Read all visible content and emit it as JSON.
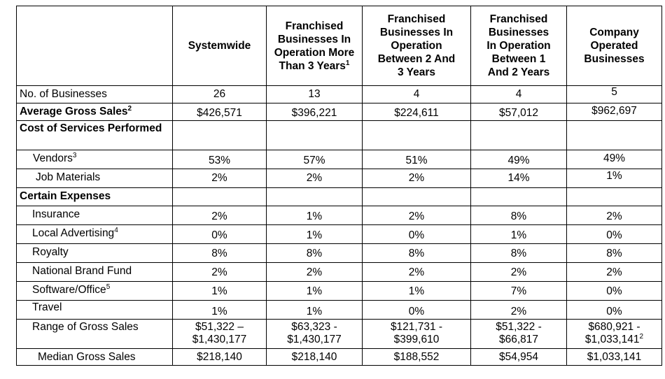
{
  "headers": [
    {
      "lines": [
        ""
      ],
      "sup": ""
    },
    {
      "lines": [
        "Systemwide"
      ],
      "sup": ""
    },
    {
      "lines": [
        "Franchised",
        "Businesses In",
        "Operation More",
        "Than 3 Years"
      ],
      "sup": "1"
    },
    {
      "lines": [
        "Franchised",
        "Businesses In",
        "Operation",
        "Between 2 And",
        "3 Years"
      ],
      "sup": ""
    },
    {
      "lines": [
        "Franchised",
        "Businesses",
        "In Operation",
        "Between 1",
        "And 2 Years"
      ],
      "sup": ""
    },
    {
      "lines": [
        "Company",
        "Operated",
        "Businesses"
      ],
      "sup": ""
    }
  ],
  "rows": [
    {
      "label": "No. of Businesses",
      "sup": "",
      "values": [
        "26",
        "13",
        "4",
        "4",
        "5"
      ]
    },
    {
      "label": "Average Gross Sales",
      "sup": "2",
      "values": [
        "$426,571",
        "$396,221",
        "$224,611",
        "$57,012",
        "$962,697"
      ]
    },
    {
      "label": "Cost of Services Performed",
      "sup": "",
      "values": [
        "",
        "",
        "",
        "",
        ""
      ]
    },
    {
      "label": "Vendors",
      "sup": "3",
      "values": [
        "53%",
        "57%",
        "51%",
        "49%",
        "49%"
      ]
    },
    {
      "label": "Job Materials",
      "sup": "",
      "values": [
        "2%",
        "2%",
        "2%",
        "14%",
        "1%"
      ]
    },
    {
      "label": "Certain Expenses",
      "sup": "",
      "values": [
        "",
        "",
        "",
        "",
        ""
      ]
    },
    {
      "label": "Insurance",
      "sup": "",
      "values": [
        "2%",
        "1%",
        "2%",
        "8%",
        "2%"
      ]
    },
    {
      "label": "Local Advertising",
      "sup": "4",
      "values": [
        "0%",
        "1%",
        "0%",
        "1%",
        "0%"
      ]
    },
    {
      "label": "Royalty",
      "sup": "",
      "values": [
        "8%",
        "8%",
        "8%",
        "8%",
        "8%"
      ]
    },
    {
      "label": "National Brand Fund",
      "sup": "",
      "values": [
        "2%",
        "2%",
        "2%",
        "2%",
        "2%"
      ]
    },
    {
      "label": "Software/Office",
      "sup": "5",
      "values": [
        "1%",
        "1%",
        "1%",
        "7%",
        "0%"
      ]
    },
    {
      "label": "Travel",
      "sup": "",
      "values": [
        "1%",
        "1%",
        "0%",
        "2%",
        "0%"
      ]
    },
    {
      "label": "Range of Gross Sales",
      "sup": "",
      "values": [
        {
          "lines": [
            "$51,322 –",
            "$1,430,177"
          ],
          "sup": ""
        },
        {
          "lines": [
            "$63,323 -",
            "$1,430,177"
          ],
          "sup": ""
        },
        {
          "lines": [
            "$121,731 -",
            "$399,610"
          ],
          "sup": ""
        },
        {
          "lines": [
            "$51,322 -",
            "$66,817"
          ],
          "sup": ""
        },
        {
          "lines": [
            "$680,921 -",
            "$1,033,141"
          ],
          "sup": "2"
        }
      ]
    },
    {
      "label": "Median Gross Sales",
      "sup": "",
      "values": [
        "$218,140",
        "$218,140",
        "$188,552",
        "$54,954",
        "$1,033,141"
      ]
    }
  ]
}
